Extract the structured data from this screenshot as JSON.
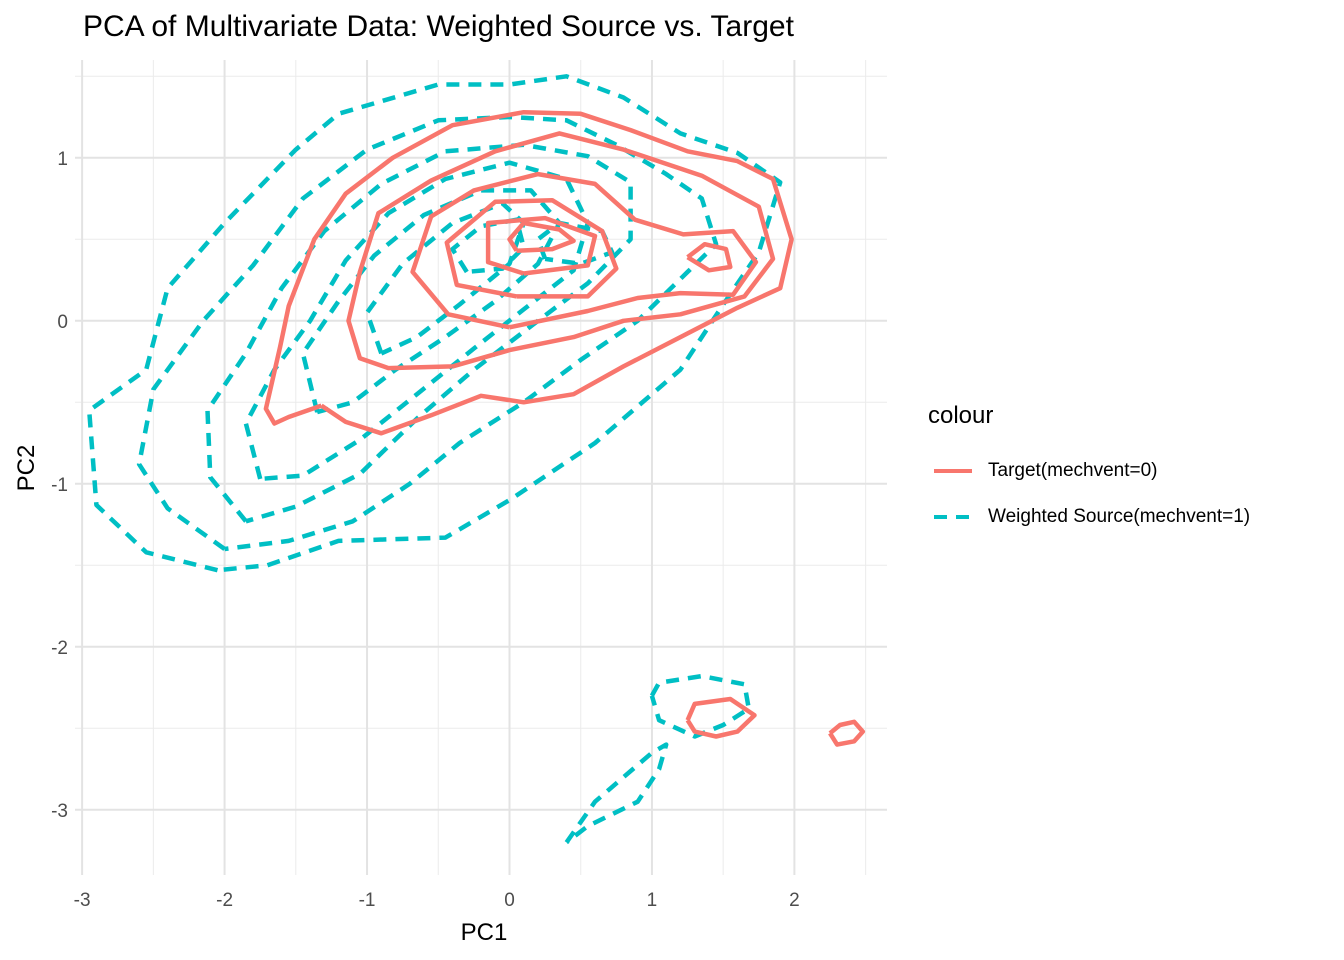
{
  "chart_data": {
    "type": "contour",
    "title": "PCA of Multivariate Data: Weighted Source vs. Target",
    "xlabel": "PC1",
    "ylabel": "PC2",
    "xlim": [
      -3.05,
      2.65
    ],
    "ylim": [
      -3.4,
      1.6
    ],
    "x_ticks": [
      -3,
      -2,
      -1,
      0,
      1,
      2
    ],
    "y_ticks": [
      -3,
      -2,
      -1,
      0,
      1
    ],
    "grid": true,
    "legend": {
      "title": "colour",
      "position": "right"
    },
    "series": [
      {
        "name": "Target(mechvent=0)",
        "color": "#F8766D",
        "linestyle": "solid",
        "contours": [
          [
            [
              -1.32,
              -0.52
            ],
            [
              -1.55,
              -0.59
            ],
            [
              -1.65,
              -0.63
            ],
            [
              -1.71,
              -0.54
            ],
            [
              -1.61,
              -0.16
            ],
            [
              -1.55,
              0.09
            ],
            [
              -1.37,
              0.5
            ],
            [
              -1.15,
              0.78
            ],
            [
              -0.82,
              1.0
            ],
            [
              -0.4,
              1.2
            ],
            [
              0.1,
              1.28
            ],
            [
              0.5,
              1.27
            ],
            [
              0.85,
              1.17
            ],
            [
              1.25,
              1.04
            ],
            [
              1.6,
              0.98
            ],
            [
              1.85,
              0.87
            ],
            [
              1.98,
              0.5
            ],
            [
              1.9,
              0.2
            ],
            [
              1.6,
              0.08
            ],
            [
              1.2,
              -0.1
            ],
            [
              0.8,
              -0.28
            ],
            [
              0.45,
              -0.45
            ],
            [
              0.1,
              -0.5
            ],
            [
              -0.2,
              -0.46
            ],
            [
              -0.55,
              -0.58
            ],
            [
              -0.9,
              -0.69
            ],
            [
              -1.15,
              -0.62
            ],
            [
              -1.32,
              -0.52
            ]
          ],
          [
            [
              -0.4,
              -0.28
            ],
            [
              -0.85,
              -0.29
            ],
            [
              -1.05,
              -0.23
            ],
            [
              -1.13,
              0.0
            ],
            [
              -1.05,
              0.3
            ],
            [
              -0.92,
              0.66
            ],
            [
              -0.55,
              0.86
            ],
            [
              -0.1,
              1.04
            ],
            [
              0.35,
              1.15
            ],
            [
              0.8,
              1.05
            ],
            [
              1.35,
              0.89
            ],
            [
              1.75,
              0.7
            ],
            [
              1.85,
              0.38
            ],
            [
              1.65,
              0.15
            ],
            [
              1.2,
              0.04
            ],
            [
              0.8,
              0.0
            ],
            [
              0.45,
              -0.1
            ],
            [
              0.0,
              -0.18
            ],
            [
              -0.4,
              -0.28
            ]
          ],
          [
            [
              0.0,
              -0.04
            ],
            [
              -0.43,
              0.04
            ],
            [
              -0.68,
              0.3
            ],
            [
              -0.55,
              0.64
            ],
            [
              -0.25,
              0.8
            ],
            [
              0.2,
              0.9
            ],
            [
              0.6,
              0.84
            ],
            [
              0.88,
              0.62
            ],
            [
              1.22,
              0.53
            ],
            [
              1.57,
              0.55
            ],
            [
              1.73,
              0.36
            ],
            [
              1.57,
              0.16
            ],
            [
              1.2,
              0.17
            ],
            [
              0.9,
              0.14
            ],
            [
              0.55,
              0.06
            ],
            [
              0.0,
              -0.04
            ]
          ],
          [
            [
              0.05,
              0.15
            ],
            [
              -0.37,
              0.22
            ],
            [
              -0.44,
              0.48
            ],
            [
              -0.1,
              0.73
            ],
            [
              0.3,
              0.74
            ],
            [
              0.65,
              0.55
            ],
            [
              0.75,
              0.32
            ],
            [
              0.55,
              0.15
            ],
            [
              0.05,
              0.15
            ]
          ],
          [
            [
              0.1,
              0.29
            ],
            [
              -0.15,
              0.36
            ],
            [
              -0.15,
              0.6
            ],
            [
              0.25,
              0.63
            ],
            [
              0.6,
              0.52
            ],
            [
              0.55,
              0.34
            ],
            [
              0.1,
              0.29
            ]
          ],
          [
            [
              0.05,
              0.43
            ],
            [
              0.0,
              0.5
            ],
            [
              0.1,
              0.6
            ],
            [
              0.35,
              0.56
            ],
            [
              0.45,
              0.49
            ],
            [
              0.3,
              0.44
            ],
            [
              0.05,
              0.43
            ]
          ],
          [
            [
              1.25,
              0.39
            ],
            [
              1.37,
              0.47
            ],
            [
              1.52,
              0.44
            ],
            [
              1.55,
              0.33
            ],
            [
              1.4,
              0.31
            ],
            [
              1.25,
              0.39
            ]
          ],
          [
            [
              1.25,
              -2.45
            ],
            [
              1.3,
              -2.35
            ],
            [
              1.55,
              -2.32
            ],
            [
              1.72,
              -2.42
            ],
            [
              1.6,
              -2.52
            ],
            [
              1.45,
              -2.55
            ],
            [
              1.3,
              -2.52
            ],
            [
              1.25,
              -2.45
            ]
          ],
          [
            [
              2.25,
              -2.53
            ],
            [
              2.32,
              -2.48
            ],
            [
              2.42,
              -2.46
            ],
            [
              2.48,
              -2.52
            ],
            [
              2.42,
              -2.58
            ],
            [
              2.3,
              -2.6
            ],
            [
              2.25,
              -2.53
            ]
          ]
        ]
      },
      {
        "name": "Weighted Source(mechvent=1)",
        "color": "#00BFC4",
        "linestyle": "dashed",
        "contours": [
          [
            [
              -2.05,
              -1.53
            ],
            [
              -2.55,
              -1.42
            ],
            [
              -2.9,
              -1.13
            ],
            [
              -2.95,
              -0.55
            ],
            [
              -2.55,
              -0.3
            ],
            [
              -2.4,
              0.2
            ],
            [
              -2.0,
              0.6
            ],
            [
              -1.5,
              1.05
            ],
            [
              -1.2,
              1.27
            ],
            [
              -0.5,
              1.45
            ],
            [
              0.0,
              1.45
            ],
            [
              0.4,
              1.5
            ],
            [
              0.8,
              1.37
            ],
            [
              1.2,
              1.15
            ],
            [
              1.6,
              1.03
            ],
            [
              1.9,
              0.85
            ],
            [
              1.75,
              0.42
            ],
            [
              1.5,
              0.1
            ],
            [
              1.2,
              -0.3
            ],
            [
              0.6,
              -0.75
            ],
            [
              0.0,
              -1.1
            ],
            [
              -0.45,
              -1.33
            ],
            [
              -1.2,
              -1.35
            ],
            [
              -1.7,
              -1.5
            ],
            [
              -2.05,
              -1.53
            ]
          ],
          [
            [
              -2.0,
              -1.4
            ],
            [
              -2.4,
              -1.15
            ],
            [
              -2.6,
              -0.88
            ],
            [
              -2.5,
              -0.42
            ],
            [
              -2.15,
              0.0
            ],
            [
              -1.8,
              0.34
            ],
            [
              -1.45,
              0.75
            ],
            [
              -1.0,
              1.05
            ],
            [
              -0.5,
              1.23
            ],
            [
              0.0,
              1.25
            ],
            [
              0.4,
              1.23
            ],
            [
              0.75,
              1.08
            ],
            [
              1.1,
              0.9
            ],
            [
              1.35,
              0.75
            ],
            [
              1.45,
              0.47
            ],
            [
              1.25,
              0.3
            ],
            [
              0.9,
              0.0
            ],
            [
              0.5,
              -0.24
            ],
            [
              0.1,
              -0.5
            ],
            [
              -0.35,
              -0.75
            ],
            [
              -0.7,
              -1.0
            ],
            [
              -1.1,
              -1.23
            ],
            [
              -1.55,
              -1.35
            ],
            [
              -2.0,
              -1.4
            ]
          ],
          [
            [
              -1.85,
              -1.23
            ],
            [
              -2.1,
              -0.96
            ],
            [
              -2.12,
              -0.55
            ],
            [
              -1.85,
              -0.2
            ],
            [
              -1.6,
              0.2
            ],
            [
              -1.3,
              0.55
            ],
            [
              -0.9,
              0.84
            ],
            [
              -0.45,
              1.04
            ],
            [
              0.1,
              1.08
            ],
            [
              0.55,
              1.01
            ],
            [
              0.85,
              0.85
            ],
            [
              0.85,
              0.5
            ],
            [
              0.55,
              0.23
            ],
            [
              0.2,
              0.0
            ],
            [
              -0.25,
              -0.3
            ],
            [
              -0.65,
              -0.6
            ],
            [
              -1.05,
              -0.94
            ],
            [
              -1.5,
              -1.14
            ],
            [
              -1.85,
              -1.23
            ]
          ],
          [
            [
              -1.75,
              -0.97
            ],
            [
              -1.85,
              -0.63
            ],
            [
              -1.65,
              -0.3
            ],
            [
              -1.4,
              0.0
            ],
            [
              -1.15,
              0.37
            ],
            [
              -0.85,
              0.66
            ],
            [
              -0.45,
              0.87
            ],
            [
              0.0,
              0.97
            ],
            [
              0.4,
              0.87
            ],
            [
              0.55,
              0.6
            ],
            [
              0.45,
              0.31
            ],
            [
              0.1,
              0.07
            ],
            [
              -0.25,
              -0.17
            ],
            [
              -0.65,
              -0.45
            ],
            [
              -1.05,
              -0.73
            ],
            [
              -1.45,
              -0.95
            ],
            [
              -1.75,
              -0.97
            ]
          ],
          [
            [
              -1.35,
              -0.56
            ],
            [
              -1.45,
              -0.2
            ],
            [
              -1.2,
              0.12
            ],
            [
              -0.95,
              0.4
            ],
            [
              -0.6,
              0.65
            ],
            [
              -0.2,
              0.8
            ],
            [
              0.15,
              0.8
            ],
            [
              0.35,
              0.6
            ],
            [
              0.2,
              0.35
            ],
            [
              -0.1,
              0.12
            ],
            [
              -0.45,
              -0.1
            ],
            [
              -0.8,
              -0.3
            ],
            [
              -1.1,
              -0.5
            ],
            [
              -1.35,
              -0.56
            ]
          ],
          [
            [
              -0.9,
              -0.2
            ],
            [
              -1.0,
              0.05
            ],
            [
              -0.75,
              0.35
            ],
            [
              -0.4,
              0.6
            ],
            [
              -0.05,
              0.72
            ],
            [
              0.1,
              0.6
            ],
            [
              0.0,
              0.35
            ],
            [
              -0.35,
              0.1
            ],
            [
              -0.65,
              -0.1
            ],
            [
              -0.9,
              -0.2
            ]
          ],
          [
            [
              -0.3,
              0.3
            ],
            [
              -0.4,
              0.44
            ],
            [
              -0.2,
              0.58
            ],
            [
              0.05,
              0.62
            ],
            [
              0.1,
              0.45
            ],
            [
              -0.05,
              0.32
            ],
            [
              -0.3,
              0.3
            ]
          ],
          [
            [
              0.25,
              0.38
            ],
            [
              0.2,
              0.5
            ],
            [
              0.35,
              0.6
            ],
            [
              0.65,
              0.55
            ],
            [
              0.72,
              0.42
            ],
            [
              0.5,
              0.35
            ],
            [
              0.25,
              0.38
            ]
          ],
          [
            [
              1.0,
              -2.3
            ],
            [
              1.05,
              -2.22
            ],
            [
              1.35,
              -2.18
            ],
            [
              1.65,
              -2.23
            ],
            [
              1.68,
              -2.38
            ],
            [
              1.5,
              -2.48
            ],
            [
              1.3,
              -2.55
            ],
            [
              1.05,
              -2.45
            ],
            [
              1.0,
              -2.3
            ]
          ],
          [
            [
              0.4,
              -3.2
            ],
            [
              0.6,
              -2.95
            ],
            [
              0.8,
              -2.8
            ],
            [
              1.0,
              -2.65
            ],
            [
              1.1,
              -2.6
            ],
            [
              1.05,
              -2.75
            ],
            [
              0.9,
              -2.95
            ],
            [
              0.55,
              -3.1
            ],
            [
              0.4,
              -3.2
            ]
          ]
        ]
      }
    ]
  }
}
